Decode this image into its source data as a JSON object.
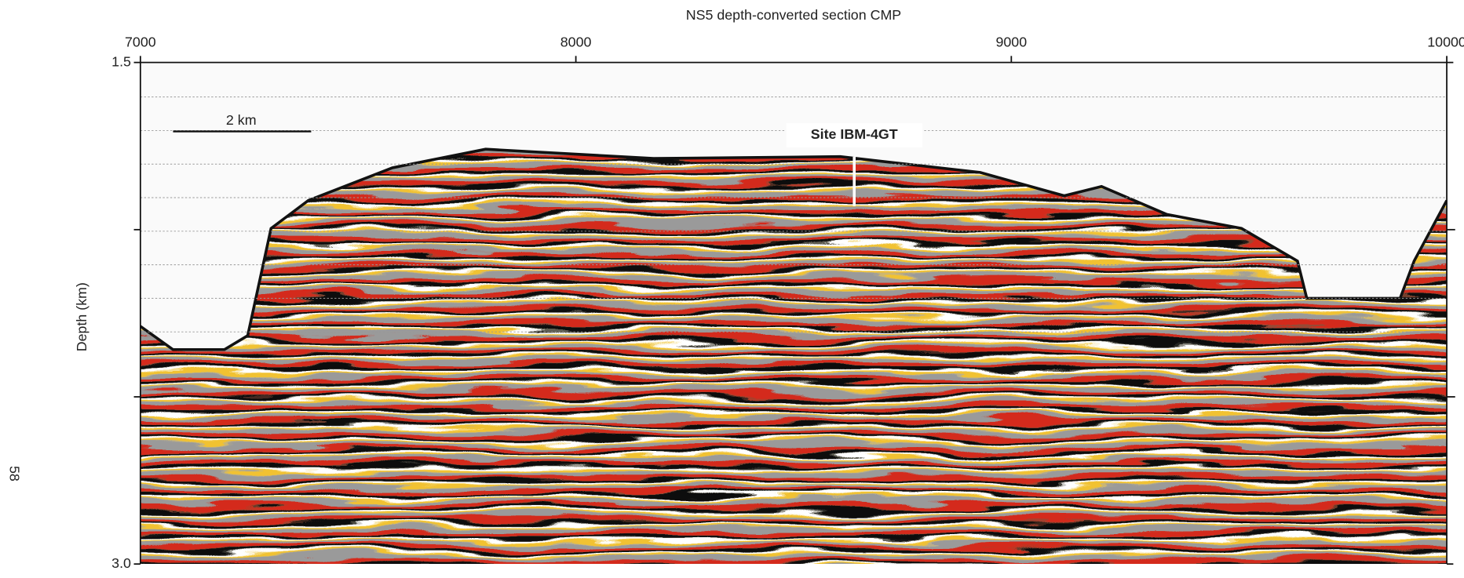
{
  "figure": {
    "title": "NS5 depth-converted section CMP",
    "y_label": "Depth (km)",
    "xlim": [
      7000,
      10000
    ],
    "xticks": [
      7000,
      8000,
      9000,
      10000
    ],
    "ylim": [
      1.5,
      3.0
    ],
    "yticks": [
      1.5,
      {
        "value": 3,
        "label": "3.0"
      }
    ],
    "yminor_ticks": [
      2,
      2.5
    ],
    "scale_bar": "2 km",
    "site_label": "Site IBM-4GT",
    "page_number": "58"
  }
}
